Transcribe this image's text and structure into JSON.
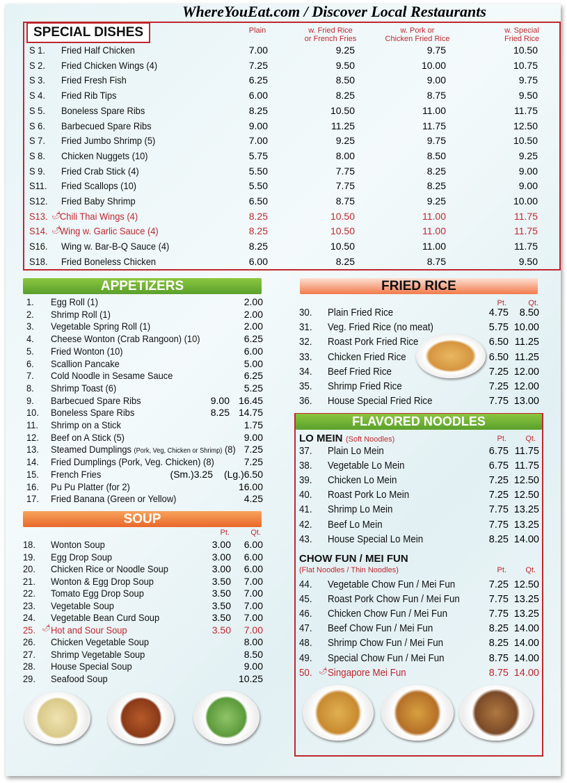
{
  "watermark": "WhereYouEat.com / Discover Local Restaurants",
  "special": {
    "title": "SPECIAL DISHES",
    "columns": [
      {
        "line1": "",
        "line2": "Plain"
      },
      {
        "line1": "w. Fried Rice",
        "line2": "or French Fries"
      },
      {
        "line1": "w. Pork or",
        "line2": "Chicken Fried Rice"
      },
      {
        "line1": "w. Special",
        "line2": "Fried Rice"
      }
    ],
    "items": [
      {
        "code": "S 1.",
        "name": "Fried Half Chicken",
        "prices": [
          "7.00",
          "9.25",
          "9.75",
          "10.50"
        ]
      },
      {
        "code": "S 2.",
        "name": "Fried Chicken Wings (4)",
        "prices": [
          "7.25",
          "9.50",
          "10.00",
          "10.75"
        ]
      },
      {
        "code": "S 3.",
        "name": "Fried Fresh Fish",
        "prices": [
          "6.25",
          "8.50",
          "9.00",
          "9.75"
        ]
      },
      {
        "code": "S 4.",
        "name": "Fried Rib Tips",
        "prices": [
          "6.00",
          "8.25",
          "8.75",
          "9.50"
        ]
      },
      {
        "code": "S 5.",
        "name": "Boneless Spare Ribs",
        "prices": [
          "8.25",
          "10.50",
          "11.00",
          "11.75"
        ]
      },
      {
        "code": "S 6.",
        "name": "Barbecued Spare Ribs",
        "prices": [
          "9.00",
          "11.25",
          "11.75",
          "12.50"
        ]
      },
      {
        "code": "S 7.",
        "name": "Fried Jumbo Shrimp (5)",
        "prices": [
          "7.00",
          "9.25",
          "9.75",
          "10.50"
        ]
      },
      {
        "code": "S 8.",
        "name": "Chicken Nuggets (10)",
        "prices": [
          "5.75",
          "8.00",
          "8.50",
          "9.25"
        ]
      },
      {
        "code": "S 9.",
        "name": "Fried Crab Stick (4)",
        "prices": [
          "5.50",
          "7.75",
          "8.25",
          "9.00"
        ]
      },
      {
        "code": "S11.",
        "name": "Fried Scallops (10)",
        "prices": [
          "5.50",
          "7.75",
          "8.25",
          "9.00"
        ]
      },
      {
        "code": "S12.",
        "name": "Fried Baby Shrimp",
        "prices": [
          "6.50",
          "8.75",
          "9.25",
          "10.00"
        ]
      },
      {
        "code": "S13.",
        "name": "Chili Thai Wings (4)",
        "prices": [
          "8.25",
          "10.50",
          "11.00",
          "11.75"
        ],
        "spicy": true
      },
      {
        "code": "S14.",
        "name": "Wing w. Garlic Sauce (4)",
        "prices": [
          "8.25",
          "10.50",
          "11.00",
          "11.75"
        ],
        "spicy": true
      },
      {
        "code": "S16.",
        "name": "Wing w. Bar-B-Q Sauce (4)",
        "prices": [
          "8.25",
          "10.50",
          "11.00",
          "11.75"
        ]
      },
      {
        "code": "S18.",
        "name": "Fried Boneless Chicken",
        "prices": [
          "6.00",
          "8.25",
          "8.75",
          "9.50"
        ]
      }
    ]
  },
  "appetizers": {
    "title": "APPETIZERS",
    "items": [
      {
        "code": "1.",
        "name": "Egg Roll (1)",
        "p1": "",
        "p2": "2.00"
      },
      {
        "code": "2.",
        "name": "Shrimp Roll (1)",
        "p1": "",
        "p2": "2.00"
      },
      {
        "code": "3.",
        "name": "Vegetable Spring Roll (1)",
        "p1": "",
        "p2": "2.00"
      },
      {
        "code": "4.",
        "name": "Cheese Wonton (Crab Rangoon) (10)",
        "p1": "",
        "p2": "6.25"
      },
      {
        "code": "5.",
        "name": "Fried Wonton (10)",
        "p1": "",
        "p2": "6.00"
      },
      {
        "code": "6.",
        "name": "Scallion Pancake",
        "p1": "",
        "p2": "5.00"
      },
      {
        "code": "7.",
        "name": "Cold Noodle in Sesame Sauce",
        "p1": "",
        "p2": "6.25"
      },
      {
        "code": "8.",
        "name": "Shrimp Toast (6)",
        "p1": "",
        "p2": "5.25"
      },
      {
        "code": "9.",
        "name": "Barbecued Spare Ribs",
        "p1": "9.00",
        "p2": "16.45"
      },
      {
        "code": "10.",
        "name": "Boneless Spare Ribs",
        "p1": "8.25",
        "p2": "14.75"
      },
      {
        "code": "11.",
        "name": "Shrimp on a Stick",
        "p1": "",
        "p2": "1.75"
      },
      {
        "code": "12.",
        "name": "Beef on A Stick (5)",
        "p1": "",
        "p2": "9.00"
      },
      {
        "code": "13.",
        "name": "Steamed Dumplings",
        "note": "(Pork, Veg, Chicken or Shrimp)",
        "suffix": "(8)",
        "p1": "",
        "p2": "7.25"
      },
      {
        "code": "14.",
        "name": "Fried Dumplings (Pork, Veg. Chicken) (8)",
        "p1": "",
        "p2": "7.25"
      },
      {
        "code": "15.",
        "name": "French Fries",
        "p1": "(Sm.)3.25",
        "p2": "(Lg.)6.50"
      },
      {
        "code": "16.",
        "name": "Pu Pu Platter (for 2)",
        "p1": "",
        "p2": "16.00"
      },
      {
        "code": "17.",
        "name": "Fried Banana (Green or Yellow)",
        "p1": "",
        "p2": "4.25"
      }
    ]
  },
  "soup": {
    "title": "SOUP",
    "pt": "Pt.",
    "qt": "Qt.",
    "items": [
      {
        "code": "18.",
        "name": "Wonton Soup",
        "p1": "3.00",
        "p2": "6.00"
      },
      {
        "code": "19.",
        "name": "Egg Drop Soup",
        "p1": "3.00",
        "p2": "6.00"
      },
      {
        "code": "20.",
        "name": "Chicken Rice or Noodle Soup",
        "p1": "3.00",
        "p2": "6.00"
      },
      {
        "code": "21.",
        "name": "Wonton & Egg Drop Soup",
        "p1": "3.50",
        "p2": "7.00"
      },
      {
        "code": "22.",
        "name": "Tomato Egg Drop Soup",
        "p1": "3.50",
        "p2": "7.00"
      },
      {
        "code": "23.",
        "name": "Vegetable Soup",
        "p1": "3.50",
        "p2": "7.00"
      },
      {
        "code": "24.",
        "name": "Vegetable Bean Curd Soup",
        "p1": "3.50",
        "p2": "7.00"
      },
      {
        "code": "25.",
        "name": "Hot and Sour Soup",
        "p1": "3.50",
        "p2": "7.00",
        "spicy": true
      },
      {
        "code": "26.",
        "name": "Chicken Vegetable Soup",
        "p1": "",
        "p2": "8.00"
      },
      {
        "code": "27.",
        "name": "Shrimp Vegetable Soup",
        "p1": "",
        "p2": "8.50"
      },
      {
        "code": "28.",
        "name": "House Special Soup",
        "p1": "",
        "p2": "9.00"
      },
      {
        "code": "29.",
        "name": "Seafood Soup",
        "p1": "",
        "p2": "10.25"
      }
    ]
  },
  "fried_rice": {
    "title": "FRIED RICE",
    "pt": "Pt.",
    "qt": "Qt.",
    "items": [
      {
        "code": "30.",
        "name": "Plain Fried Rice",
        "p1": "4.75",
        "p2": "8.50"
      },
      {
        "code": "31.",
        "name": "Veg. Fried Rice (no meat)",
        "p1": "5.75",
        "p2": "10.00"
      },
      {
        "code": "32.",
        "name": "Roast Pork Fried Rice",
        "p1": "6.50",
        "p2": "11.25"
      },
      {
        "code": "33.",
        "name": "Chicken Fried Rice",
        "p1": "6.50",
        "p2": "11.25"
      },
      {
        "code": "34.",
        "name": "Beef Fried Rice",
        "p1": "7.25",
        "p2": "12.00"
      },
      {
        "code": "35.",
        "name": "Shrimp Fried Rice",
        "p1": "7.25",
        "p2": "12.00"
      },
      {
        "code": "36.",
        "name": "House Special Fried Rice",
        "p1": "7.75",
        "p2": "13.00"
      }
    ]
  },
  "noodles": {
    "title": "FLAVORED NOODLES",
    "lo_mein": {
      "title": "LO MEIN",
      "note": "(Soft Noodles)",
      "pt": "Pt.",
      "qt": "Qt.",
      "items": [
        {
          "code": "37.",
          "name": "Plain Lo Mein",
          "p1": "6.75",
          "p2": "11.75"
        },
        {
          "code": "38.",
          "name": "Vegetable Lo Mein",
          "p1": "6.75",
          "p2": "11.75"
        },
        {
          "code": "39.",
          "name": "Chicken Lo Mein",
          "p1": "7.25",
          "p2": "12.50"
        },
        {
          "code": "40.",
          "name": "Roast Pork Lo Mein",
          "p1": "7.25",
          "p2": "12.50"
        },
        {
          "code": "41.",
          "name": "Shrimp Lo Mein",
          "p1": "7.75",
          "p2": "13.25"
        },
        {
          "code": "42.",
          "name": "Beef Lo Mein",
          "p1": "7.75",
          "p2": "13.25"
        },
        {
          "code": "43.",
          "name": "House Special Lo Mein",
          "p1": "8.25",
          "p2": "14.00"
        }
      ]
    },
    "chow_fun": {
      "title": "CHOW FUN / MEI FUN",
      "note": "(Flat Noodles / Thin Noodles)",
      "pt": "Pt.",
      "qt": "Qt.",
      "items": [
        {
          "code": "44.",
          "name": "Vegetable Chow Fun / Mei Fun",
          "p1": "7.25",
          "p2": "12.50"
        },
        {
          "code": "45.",
          "name": "Roast Pork Chow Fun / Mei Fun",
          "p1": "7.75",
          "p2": "13.25"
        },
        {
          "code": "46.",
          "name": "Chicken Chow Fun / Mei Fun",
          "p1": "7.75",
          "p2": "13.25"
        },
        {
          "code": "47.",
          "name": "Beef Chow Fun / Mei Fun",
          "p1": "8.25",
          "p2": "14.00"
        },
        {
          "code": "48.",
          "name": "Shrimp Chow Fun / Mei Fun",
          "p1": "8.25",
          "p2": "14.00"
        },
        {
          "code": "49.",
          "name": "Special Chow Fun / Mei Fun",
          "p1": "8.75",
          "p2": "14.00"
        },
        {
          "code": "50.",
          "name": "Singapore Mei Fun",
          "p1": "8.75",
          "p2": "14.00",
          "spicy": true
        }
      ]
    }
  },
  "colors": {
    "accent_red": "#c0272d",
    "green": "#6ab233",
    "orange": "#ef7b3a"
  },
  "icons": {
    "spicy": "chili-pepper-icon"
  }
}
